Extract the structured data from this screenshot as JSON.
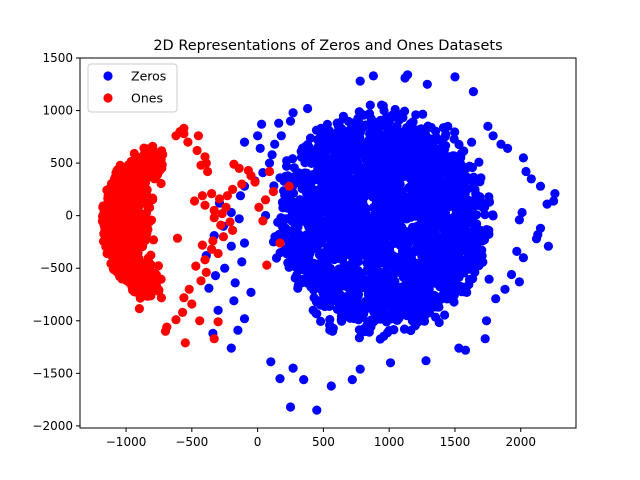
{
  "chart_data": {
    "type": "scatter",
    "title": "2D Representations of Zeros and Ones Datasets",
    "xlabel": "",
    "ylabel": "",
    "xlim": [
      -1350,
      2420
    ],
    "ylim": [
      -2020,
      1500
    ],
    "x_ticks": [
      -1000,
      -500,
      0,
      500,
      1000,
      1500,
      2000
    ],
    "y_ticks": [
      -2000,
      -1500,
      -1000,
      -500,
      0,
      500,
      1000,
      1500
    ],
    "grid": false,
    "legend_position": "top-left",
    "series": [
      {
        "name": "Zeros",
        "color": "#0000ff",
        "cluster": {
          "center": [
            950,
            -50
          ],
          "spread": [
            380,
            430
          ],
          "count": 2600
        },
        "points": [
          [
            1140,
            1340
          ],
          [
            1120,
            1310
          ],
          [
            880,
            1330
          ],
          [
            780,
            1280
          ],
          [
            1290,
            1250
          ],
          [
            1500,
            1320
          ],
          [
            1640,
            1180
          ],
          [
            1750,
            850
          ],
          [
            1790,
            760
          ],
          [
            1850,
            680
          ],
          [
            1900,
            640
          ],
          [
            2020,
            550
          ],
          [
            2040,
            420
          ],
          [
            2080,
            350
          ],
          [
            2150,
            280
          ],
          [
            2260,
            210
          ],
          [
            2250,
            140
          ],
          [
            2200,
            110
          ],
          [
            2010,
            30
          ],
          [
            1990,
            -40
          ],
          [
            2150,
            -120
          ],
          [
            2130,
            -180
          ],
          [
            2120,
            -220
          ],
          [
            2210,
            -290
          ],
          [
            1970,
            -340
          ],
          [
            2020,
            -400
          ],
          [
            1930,
            -560
          ],
          [
            1990,
            -630
          ],
          [
            1880,
            -700
          ],
          [
            1810,
            -790
          ],
          [
            1740,
            -1000
          ],
          [
            1730,
            -1170
          ],
          [
            1580,
            -1280
          ],
          [
            1530,
            -1260
          ],
          [
            1280,
            -1380
          ],
          [
            1010,
            -1400
          ],
          [
            780,
            -1460
          ],
          [
            720,
            -1560
          ],
          [
            560,
            -1620
          ],
          [
            450,
            -1850
          ],
          [
            250,
            -1820
          ],
          [
            350,
            -1560
          ],
          [
            170,
            -1550
          ],
          [
            270,
            -1450
          ],
          [
            100,
            -1390
          ],
          [
            -200,
            -1260
          ],
          [
            -340,
            -1120
          ],
          [
            -150,
            -1090
          ],
          [
            -100,
            -980
          ],
          [
            -300,
            -900
          ],
          [
            -180,
            -810
          ],
          [
            -50,
            -730
          ],
          [
            -370,
            -690
          ],
          [
            -170,
            -640
          ],
          [
            -320,
            -570
          ],
          [
            -250,
            -500
          ],
          [
            -120,
            -440
          ],
          [
            -390,
            -380
          ],
          [
            -200,
            -290
          ],
          [
            -100,
            -260
          ],
          [
            -330,
            -190
          ],
          [
            -260,
            -100
          ],
          [
            -140,
            -30
          ],
          [
            -200,
            30
          ],
          [
            -290,
            120
          ],
          [
            -130,
            190
          ],
          [
            -100,
            280
          ],
          [
            -20,
            330
          ],
          [
            40,
            410
          ],
          [
            90,
            500
          ],
          [
            20,
            640
          ],
          [
            -100,
            700
          ],
          [
            0,
            760
          ],
          [
            180,
            760
          ],
          [
            30,
            870
          ],
          [
            160,
            880
          ],
          [
            270,
            980
          ],
          [
            380,
            1020
          ],
          [
            250,
            900
          ],
          [
            130,
            680
          ],
          [
            110,
            580
          ],
          [
            220,
            470
          ],
          [
            170,
            360
          ]
        ]
      },
      {
        "name": "Ones",
        "color": "#ff0000",
        "cluster": {
          "center": [
            -920,
            -80
          ],
          "spread": [
            120,
            340
          ],
          "count": 1400
        },
        "points": [
          [
            -560,
            830
          ],
          [
            -590,
            800
          ],
          [
            -560,
            780
          ],
          [
            -620,
            760
          ],
          [
            -450,
            760
          ],
          [
            -530,
            700
          ],
          [
            -460,
            620
          ],
          [
            -400,
            560
          ],
          [
            -390,
            500
          ],
          [
            -430,
            480
          ],
          [
            -380,
            420
          ],
          [
            -180,
            490
          ],
          [
            -140,
            450
          ],
          [
            -70,
            430
          ],
          [
            -50,
            380
          ],
          [
            -20,
            320
          ],
          [
            -120,
            300
          ],
          [
            -190,
            250
          ],
          [
            -230,
            190
          ],
          [
            -290,
            160
          ],
          [
            -350,
            210
          ],
          [
            -420,
            190
          ],
          [
            -480,
            140
          ],
          [
            -400,
            100
          ],
          [
            -330,
            50
          ],
          [
            -240,
            80
          ],
          [
            -270,
            20
          ],
          [
            -330,
            -20
          ],
          [
            -280,
            -90
          ],
          [
            -210,
            -60
          ],
          [
            -190,
            -140
          ],
          [
            -260,
            -200
          ],
          [
            -340,
            -240
          ],
          [
            -420,
            -280
          ],
          [
            -350,
            -320
          ],
          [
            -300,
            -360
          ],
          [
            -400,
            -420
          ],
          [
            -470,
            -480
          ],
          [
            -390,
            -540
          ],
          [
            -430,
            -620
          ],
          [
            -520,
            -700
          ],
          [
            -560,
            -780
          ],
          [
            -500,
            -840
          ],
          [
            -570,
            -920
          ],
          [
            -620,
            -990
          ],
          [
            -440,
            -1000
          ],
          [
            -300,
            -1010
          ],
          [
            -330,
            -1170
          ],
          [
            -550,
            -1210
          ],
          [
            -700,
            -1100
          ],
          [
            -690,
            -1060
          ],
          [
            240,
            280
          ],
          [
            90,
            420
          ],
          [
            70,
            -470
          ],
          [
            170,
            -260
          ],
          [
            40,
            -50
          ],
          [
            10,
            80
          ],
          [
            60,
            150
          ],
          [
            120,
            230
          ]
        ]
      }
    ]
  }
}
